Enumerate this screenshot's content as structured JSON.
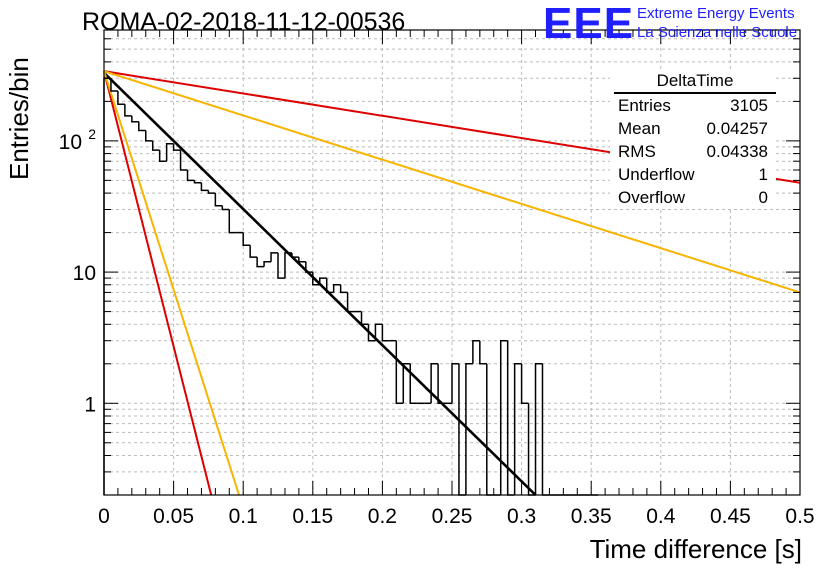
{
  "title": "ROMA-02-2018-11-12-00536",
  "logo": {
    "mark": "EEE",
    "line1": "Extreme Energy Events",
    "line2": "La Scienza nelle Scuole"
  },
  "stats": {
    "name": "DeltaTime",
    "rows": [
      {
        "label": "Entries",
        "value": "3105"
      },
      {
        "label": "Mean",
        "value": "0.04257"
      },
      {
        "label": "RMS",
        "value": "0.04338"
      },
      {
        "label": "Underflow",
        "value": "1"
      },
      {
        "label": "Overflow",
        "value": "0"
      }
    ]
  },
  "colors": {
    "hist": "#000000",
    "fit": "#000000",
    "red": "#dd0000",
    "orange": "#f7b400",
    "grid": "#bbbbbb"
  },
  "chart_data": {
    "type": "line",
    "title": "ROMA-02-2018-11-12-00536",
    "xlabel": "Time difference [s]",
    "ylabel": "Entries/bin",
    "xlim": [
      0,
      0.5
    ],
    "ylim": [
      0.2,
      700
    ],
    "yscale": "log",
    "grid": true,
    "x_ticks": [
      "0",
      "0.05",
      "0.1",
      "0.15",
      "0.2",
      "0.25",
      "0.3",
      "0.35",
      "0.4",
      "0.45",
      "0.5"
    ],
    "y_ticks": [
      "1",
      "10",
      "10^2"
    ],
    "histogram": {
      "bin_width": 0.005,
      "counts": [
        300,
        240,
        190,
        155,
        140,
        120,
        100,
        85,
        70,
        95,
        85,
        60,
        50,
        48,
        42,
        40,
        32,
        30,
        20,
        20,
        16,
        13,
        11,
        12,
        14,
        9,
        14,
        13,
        12,
        10,
        8,
        9,
        7,
        8,
        7,
        5,
        5,
        4,
        3,
        4,
        3,
        3,
        1,
        2,
        1,
        1,
        1,
        2,
        1,
        1,
        2,
        0,
        2,
        3,
        2,
        0,
        0,
        3,
        0,
        2,
        1,
        0,
        2,
        0,
        0,
        0,
        0,
        0,
        0,
        0,
        0
      ]
    },
    "series": [
      {
        "color": "#000000",
        "start": 330,
        "x_end": 0.31,
        "y_end": 0.2
      },
      {
        "color": "#dd0000",
        "start": 340,
        "x_end": 0.5,
        "y_end": 48
      },
      {
        "color": "#f7b400",
        "start": 340,
        "x_end": 0.5,
        "y_end": 7
      },
      {
        "color": "#dd0000",
        "start": 340,
        "x_end": 0.077,
        "y_end": 0.2
      },
      {
        "color": "#f7b400",
        "start": 340,
        "x_end": 0.097,
        "y_end": 0.2
      }
    ]
  }
}
